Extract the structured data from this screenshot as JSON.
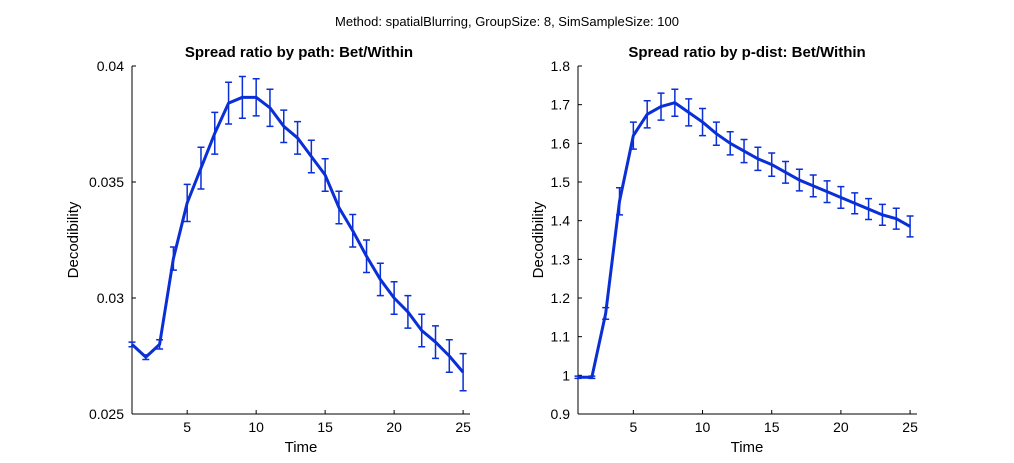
{
  "figure": {
    "suptitle": "Method: spatialBlurring, GroupSize: 8, SimSampleSize: 100",
    "series_color": "#0a2fd6"
  },
  "chart_data": [
    {
      "type": "line",
      "title": "Spread ratio by path: Bet/Within",
      "xlabel": "Time",
      "ylabel": "Decodibility",
      "xlim": [
        1,
        25.5
      ],
      "ylim": [
        0.025,
        0.04
      ],
      "xticks": [
        5,
        10,
        15,
        20,
        25
      ],
      "xtick_labels": [
        "5",
        "10",
        "15",
        "20",
        "25"
      ],
      "yticks": [
        0.025,
        0.03,
        0.035,
        0.04
      ],
      "ytick_labels": [
        "0.025",
        "0.03",
        "0.035",
        "0.04"
      ],
      "grid": false,
      "x": [
        1,
        2,
        3,
        4,
        5,
        6,
        7,
        8,
        9,
        10,
        11,
        12,
        13,
        14,
        15,
        16,
        17,
        18,
        19,
        20,
        21,
        22,
        23,
        24,
        25
      ],
      "y": [
        0.028,
        0.02745,
        0.028,
        0.0317,
        0.0341,
        0.0356,
        0.0371,
        0.0384,
        0.03865,
        0.03865,
        0.0382,
        0.0374,
        0.0369,
        0.0361,
        0.0353,
        0.0339,
        0.0329,
        0.0318,
        0.0308,
        0.03,
        0.0294,
        0.0286,
        0.0281,
        0.0275,
        0.0268
      ],
      "err": [
        0.0001,
        0.0001,
        0.0002,
        0.0005,
        0.0008,
        0.0009,
        0.0009,
        0.0009,
        0.0009,
        0.0008,
        0.0008,
        0.0007,
        0.0007,
        0.0007,
        0.0007,
        0.0007,
        0.0007,
        0.0007,
        0.0007,
        0.0007,
        0.0007,
        0.0007,
        0.0007,
        0.0007,
        0.0008
      ]
    },
    {
      "type": "line",
      "title": "Spread ratio by p-dist: Bet/Within",
      "xlabel": "Time",
      "ylabel": "Decodibility",
      "xlim": [
        1,
        25.5
      ],
      "ylim": [
        0.9,
        1.8
      ],
      "xticks": [
        5,
        10,
        15,
        20,
        25
      ],
      "xtick_labels": [
        "5",
        "10",
        "15",
        "20",
        "25"
      ],
      "yticks": [
        0.9,
        1.0,
        1.1,
        1.2,
        1.3,
        1.4,
        1.5,
        1.6,
        1.7,
        1.8
      ],
      "ytick_labels": [
        "0.9",
        "1",
        "1.1",
        "1.2",
        "1.3",
        "1.4",
        "1.5",
        "1.6",
        "1.7",
        "1.8"
      ],
      "grid": false,
      "x": [
        1,
        2,
        3,
        4,
        5,
        6,
        7,
        8,
        9,
        10,
        11,
        12,
        13,
        14,
        15,
        16,
        17,
        18,
        19,
        20,
        21,
        22,
        23,
        24,
        25
      ],
      "y": [
        0.995,
        0.995,
        1.16,
        1.45,
        1.62,
        1.675,
        1.695,
        1.705,
        1.68,
        1.655,
        1.625,
        1.6,
        1.58,
        1.56,
        1.545,
        1.525,
        1.505,
        1.49,
        1.475,
        1.46,
        1.445,
        1.43,
        1.415,
        1.405,
        1.385
      ],
      "err": [
        0.003,
        0.003,
        0.015,
        0.035,
        0.035,
        0.035,
        0.035,
        0.035,
        0.035,
        0.035,
        0.03,
        0.03,
        0.03,
        0.03,
        0.03,
        0.028,
        0.028,
        0.028,
        0.028,
        0.028,
        0.027,
        0.027,
        0.027,
        0.027,
        0.027
      ]
    }
  ]
}
